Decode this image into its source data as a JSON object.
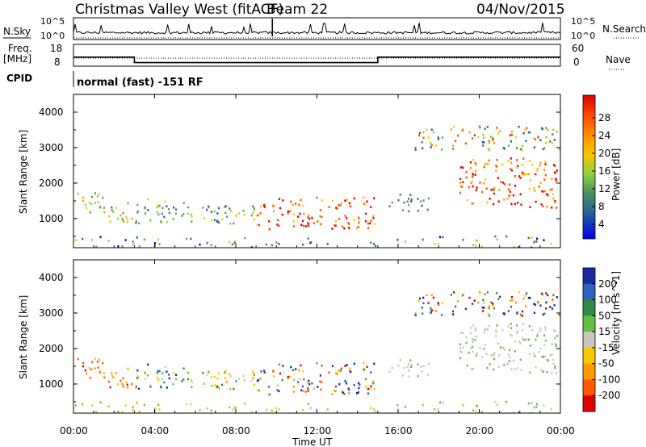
{
  "header": {
    "title": "Christmas Valley West (fitACF)",
    "beam": "Beam 22",
    "date": "04/Nov/2015"
  },
  "nsky_panel": {
    "left_label": "N.Sky",
    "right_label": "N.Search",
    "left_ticks": [
      "10^5",
      "10^0"
    ],
    "right_ticks": [
      "10^5",
      "10^0"
    ]
  },
  "freq_panel": {
    "label_line1": "Freq.",
    "label_line2": "[MHz]",
    "right_label": "Nave",
    "left_ticks": [
      "18",
      "8"
    ],
    "right_ticks": [
      "60",
      "0"
    ]
  },
  "cpid": {
    "label": "CPID",
    "text": "normal (fast) -151 RF"
  },
  "power_panel": {
    "ylabel": "Slant Range [km]",
    "yticks": [
      "4000",
      "3000",
      "2000",
      "1000"
    ],
    "colorbar_label": "Power [dB]",
    "colorbar_ticks": [
      "28",
      "24",
      "20",
      "16",
      "12",
      "8",
      "4"
    ],
    "colors": [
      "#e00000",
      "#ff5000",
      "#ff9a00",
      "#f5c800",
      "#8ed040",
      "#5fa060",
      "#3a7a70",
      "#2a5aaa",
      "#0000ee"
    ]
  },
  "velocity_panel": {
    "ylabel": "Slant Range [km]",
    "yticks": [
      "4000",
      "3000",
      "2000",
      "1000"
    ],
    "colorbar_label": "Velocity [m s^-1]",
    "colorbar_ticks": [
      "200",
      "100",
      "50",
      "15",
      "-15",
      "-50",
      "-100",
      "-200"
    ],
    "colors": [
      "#1a2aa0",
      "#3060c0",
      "#2e8a4a",
      "#60c040",
      "#c8c8c0",
      "#f5c800",
      "#ff9a00",
      "#ff5a00",
      "#e00000"
    ]
  },
  "xaxis": {
    "label": "Time UT",
    "ticks": [
      "00:00",
      "04:00",
      "08:00",
      "12:00",
      "16:00",
      "20:00",
      "00:00"
    ]
  },
  "chart_data": {
    "type": "heatmap",
    "title": "Christmas Valley West (fitACF)",
    "xlabel": "Time UT",
    "ylabel": "Slant Range [km]",
    "xlim": [
      "00:00",
      "24:00"
    ],
    "ylim": [
      180,
      4500
    ],
    "frequency_steps_mhz": [
      {
        "t_start": 0,
        "t_end": 3,
        "freq": 14
      },
      {
        "t_start": 3,
        "t_end": 15,
        "freq": 10
      },
      {
        "t_start": 15,
        "t_end": 24,
        "freq": 14
      }
    ],
    "scatter_regions": [
      {
        "t_start": 0.0,
        "t_end": 1.6,
        "r_min": 1150,
        "r_max": 1750,
        "power": "12-20",
        "velocity": "-50 to -200"
      },
      {
        "t_start": 1.6,
        "t_end": 3.0,
        "r_min": 900,
        "r_max": 1500,
        "power": "12-20",
        "velocity": "-50 to -200"
      },
      {
        "t_start": 3.0,
        "t_end": 5.5,
        "r_min": 850,
        "r_max": 1550,
        "power": "8-16",
        "velocity": "-15 to 100"
      },
      {
        "t_start": 5.5,
        "t_end": 9.0,
        "r_min": 850,
        "r_max": 1400,
        "power": "8-20",
        "velocity": "-15 to -100"
      },
      {
        "t_start": 9.0,
        "t_end": 14.8,
        "r_min": 700,
        "r_max": 1600,
        "power": "20-28",
        "velocity": "-100 to 200"
      },
      {
        "t_start": 15.5,
        "t_end": 17.5,
        "r_min": 1200,
        "r_max": 1700,
        "power": "8-12",
        "velocity": "-15 to 15"
      },
      {
        "t_start": 16.8,
        "t_end": 23.9,
        "r_min": 2900,
        "r_max": 3600,
        "power": "8-24",
        "velocity": "-100 to 200"
      },
      {
        "t_start": 19.0,
        "t_end": 23.9,
        "r_min": 1300,
        "r_max": 2700,
        "power": "16-28",
        "velocity": "-15 to 15"
      },
      {
        "t_start": 0.0,
        "t_end": 24.0,
        "r_min": 180,
        "r_max": 500,
        "power": "4-16",
        "velocity": "15 to -100"
      }
    ]
  }
}
